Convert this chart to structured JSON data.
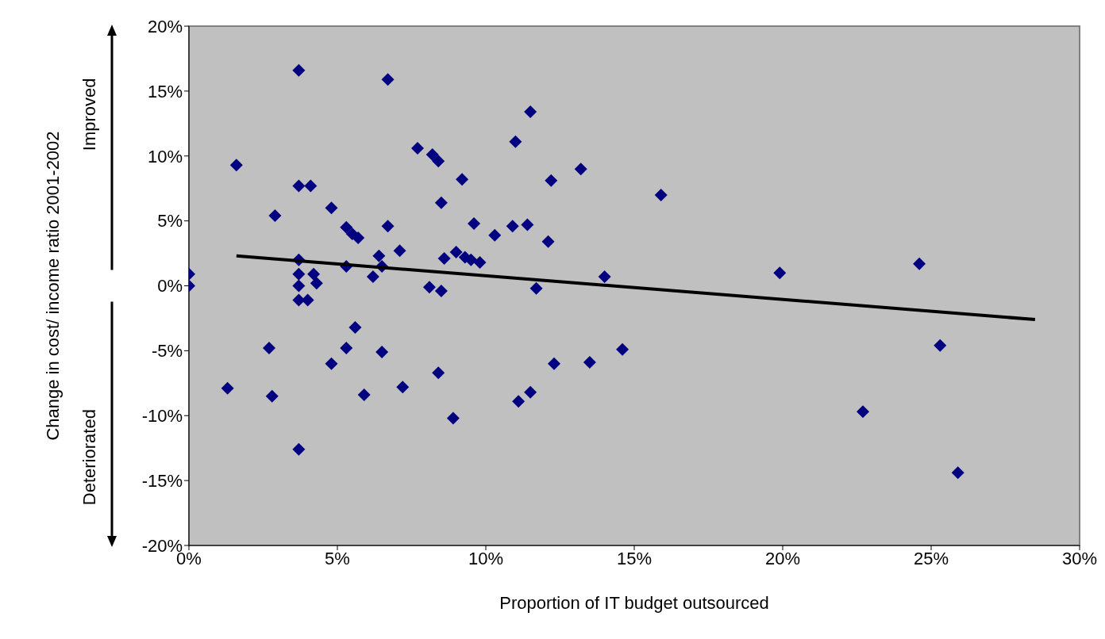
{
  "chart_data": {
    "type": "scatter",
    "xlabel": "Proportion of IT budget outsourced",
    "ylabel": "Change in cost/ income ratio 2001-2002",
    "annotations": [
      "Improved",
      "Deteriorated"
    ],
    "xlim": [
      0,
      30
    ],
    "xticks": [
      {
        "value": 0,
        "label": "0%"
      },
      {
        "value": 5,
        "label": "5%"
      },
      {
        "value": 10,
        "label": "10%"
      },
      {
        "value": 15,
        "label": "15%"
      },
      {
        "value": 20,
        "label": "20%"
      },
      {
        "value": 25,
        "label": "25%"
      },
      {
        "value": 30,
        "label": "30%"
      }
    ],
    "ylim": [
      -20,
      20
    ],
    "yticks": [
      {
        "value": -20,
        "label": "-20%"
      },
      {
        "value": -15,
        "label": "-15%"
      },
      {
        "value": -10,
        "label": "-10%"
      },
      {
        "value": -5,
        "label": "-5%"
      },
      {
        "value": 0,
        "label": "0%"
      },
      {
        "value": 5,
        "label": "5%"
      },
      {
        "value": 10,
        "label": "10%"
      },
      {
        "value": 15,
        "label": "15%"
      },
      {
        "value": 20,
        "label": "20%"
      }
    ],
    "series": [
      {
        "marker": "diamond",
        "color": "#000080",
        "x": [
          0,
          0,
          1.6,
          1.3,
          2.9,
          2.7,
          2.8,
          3.7,
          3.7,
          4.1,
          3.7,
          3.7,
          3.7,
          3.7,
          4.0,
          4.2,
          4.3,
          3.7,
          4.8,
          5.3,
          5.5,
          5.7,
          5.3,
          5.3,
          4.8,
          5.6,
          5.9,
          6.7,
          6.7,
          6.4,
          6.2,
          6.5,
          7.1,
          6.5,
          7.2,
          7.7,
          8.2,
          8.4,
          8.5,
          8.6,
          9.0,
          9.3,
          9.5,
          9.8,
          8.1,
          8.5,
          8.4,
          8.9,
          9.2,
          9.6,
          10.3,
          11.0,
          10.9,
          11.5,
          11.4,
          12.2,
          12.1,
          11.7,
          11.1,
          11.5,
          12.3,
          13.5,
          13.2,
          14.0,
          14.6,
          15.9,
          19.9,
          24.6,
          25.3,
          22.7,
          25.9
        ],
        "values": [
          0.9,
          0,
          9.3,
          -7.9,
          5.4,
          -4.8,
          -8.5,
          16.6,
          7.7,
          7.7,
          2.0,
          0.9,
          0,
          -1.1,
          -1.1,
          0.9,
          0.2,
          -12.6,
          6.0,
          4.5,
          4.0,
          3.7,
          1.5,
          -4.8,
          -6.0,
          -3.2,
          -8.4,
          15.9,
          4.6,
          2.3,
          0.7,
          1.5,
          2.7,
          -5.1,
          -7.8,
          10.6,
          10.1,
          9.6,
          6.4,
          2.1,
          2.6,
          2.2,
          2.0,
          1.8,
          -0.1,
          -0.4,
          -6.7,
          -10.2,
          8.2,
          4.8,
          3.9,
          11.1,
          4.6,
          13.4,
          4.7,
          8.1,
          3.4,
          -0.2,
          -8.9,
          -8.2,
          -6.0,
          -5.9,
          9.0,
          0.7,
          -4.9,
          7.0,
          1.0,
          1.7,
          -4.6,
          -9.7,
          -14.4
        ]
      },
      {
        "type": "line",
        "marker": "none",
        "color": "#000000",
        "x": [
          1.6,
          28.5
        ],
        "values": [
          2.3,
          -2.6
        ]
      }
    ]
  }
}
